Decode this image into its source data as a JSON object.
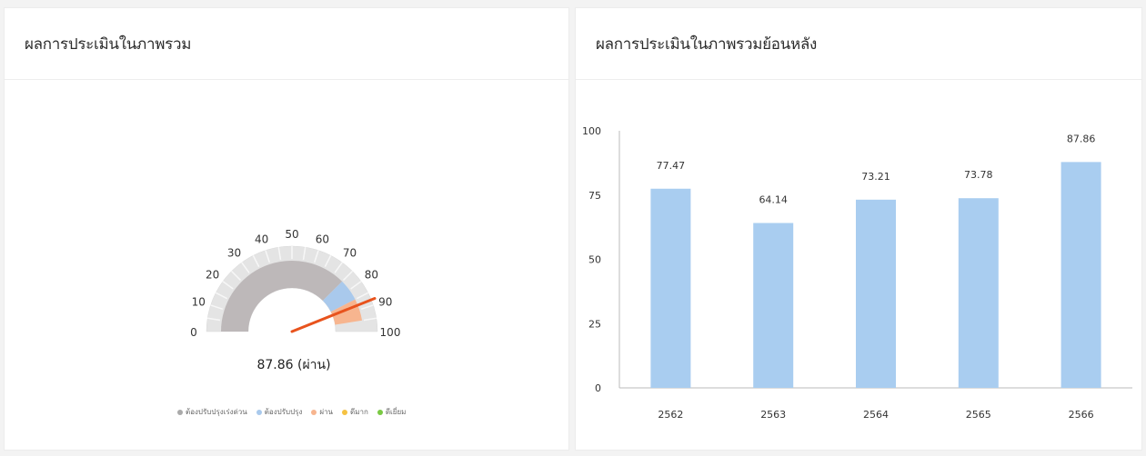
{
  "left_panel": {
    "title": "ผลการประเมินในภาพรวม",
    "gauge": {
      "value": 87.86,
      "value_label": "87.86 (ผ่าน)",
      "min": 0,
      "max": 100,
      "ticks": [
        "0",
        "10",
        "20",
        "30",
        "40",
        "50",
        "60",
        "70",
        "80",
        "90",
        "100"
      ],
      "bands": [
        {
          "from": 0,
          "to": 75,
          "color": "#bdb8b9"
        },
        {
          "from": 75,
          "to": 85,
          "color": "#a9c9ec"
        },
        {
          "from": 85,
          "to": 95,
          "color": "#f7b58f"
        }
      ],
      "needle_color": "#e8531d",
      "outer_color": "#e4e4e4"
    },
    "legend": [
      {
        "label": "ต้องปรับปรุงเร่งด่วน",
        "color": "#aaaaaa"
      },
      {
        "label": "ต้องปรับปรุง",
        "color": "#a9c9ec"
      },
      {
        "label": "ผ่าน",
        "color": "#f7b58f"
      },
      {
        "label": "ดีมาก",
        "color": "#f5c242"
      },
      {
        "label": "ดีเยี่ยม",
        "color": "#7ac943"
      }
    ]
  },
  "right_panel": {
    "title": "ผลการประเมินในภาพรวมย้อนหลัง"
  },
  "chart_data": {
    "type": "bar",
    "categories": [
      "2562",
      "2563",
      "2564",
      "2565",
      "2566"
    ],
    "values": [
      77.47,
      64.14,
      73.21,
      73.78,
      87.86
    ],
    "data_labels": [
      "77.47",
      "64.14",
      "73.21",
      "73.78",
      "87.86"
    ],
    "yticks": [
      "0",
      "25",
      "50",
      "75",
      "100"
    ],
    "ylim": [
      0,
      100
    ],
    "bar_color": "#a9cdf0",
    "grid": false,
    "title": "ผลการประเมินในภาพรวมย้อนหลัง",
    "xlabel": "",
    "ylabel": ""
  }
}
